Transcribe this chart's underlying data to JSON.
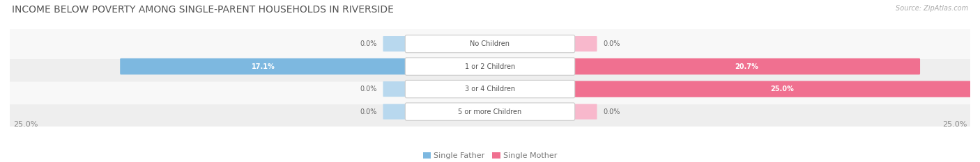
{
  "title": "INCOME BELOW POVERTY AMONG SINGLE-PARENT HOUSEHOLDS IN RIVERSIDE",
  "source": "Source: ZipAtlas.com",
  "categories": [
    "No Children",
    "1 or 2 Children",
    "3 or 4 Children",
    "5 or more Children"
  ],
  "single_father": [
    0.0,
    17.1,
    0.0,
    0.0
  ],
  "single_mother": [
    0.0,
    20.7,
    25.0,
    0.0
  ],
  "max_val": 25.0,
  "father_color": "#7db8e0",
  "mother_color": "#f07090",
  "father_color_light": "#b8d8ee",
  "mother_color_light": "#f8b8cc",
  "row_bg_even": "#eeeeee",
  "row_bg_odd": "#f8f8f8",
  "title_fontsize": 10,
  "tick_fontsize": 8,
  "label_fontsize": 7,
  "value_fontsize": 7,
  "legend_fontsize": 8,
  "source_fontsize": 7,
  "x_left_label": "25.0%",
  "x_right_label": "25.0%"
}
